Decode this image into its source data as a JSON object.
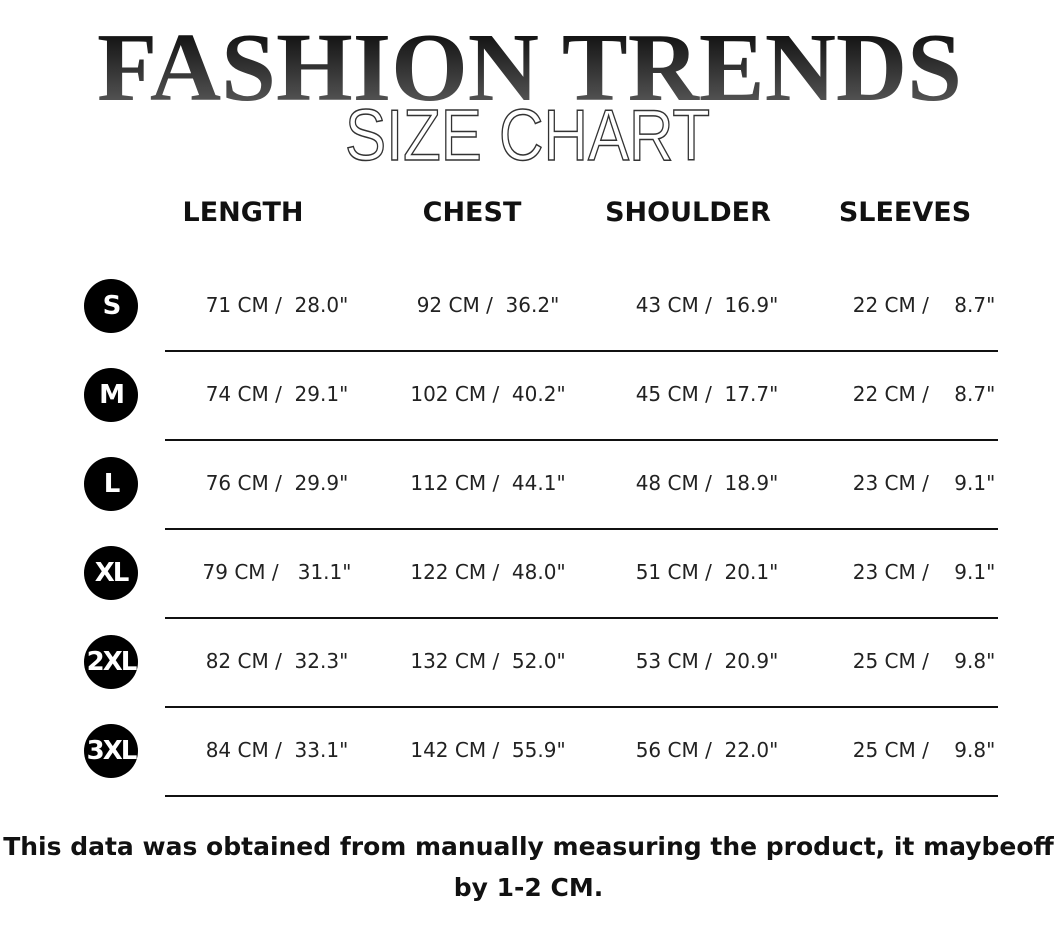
{
  "title": "FASHION TRENDS",
  "subtitle": "SIZE CHART",
  "columns": [
    "LENGTH",
    "CHEST",
    "SHOULDER",
    "SLEEVES"
  ],
  "rows": [
    {
      "size": "S",
      "values": [
        "71 CM /  28.0\"",
        "92 CM /  36.2\"",
        "43 CM /  16.9\"",
        "22 CM /    8.7\""
      ]
    },
    {
      "size": "M",
      "values": [
        "74 CM /  29.1\"",
        "102 CM /  40.2\"",
        "45 CM /  17.7\"",
        "22 CM /    8.7\""
      ]
    },
    {
      "size": "L",
      "values": [
        "76 CM /  29.9\"",
        "112 CM /  44.1\"",
        "48 CM /  18.9\"",
        "23 CM /    9.1\""
      ]
    },
    {
      "size": "XL",
      "values": [
        "79 CM /   31.1\"",
        "122 CM /  48.0\"",
        "51 CM /  20.1\"",
        "23 CM /    9.1\""
      ]
    },
    {
      "size": "2XL",
      "values": [
        "82 CM /  32.3\"",
        "132 CM /  52.0\"",
        "53 CM /  20.9\"",
        "25 CM /    9.8\""
      ]
    },
    {
      "size": "3XL",
      "values": [
        "84 CM /  33.1\"",
        "142 CM /  55.9\"",
        "56 CM /  22.0\"",
        "25 CM /    9.8\""
      ]
    }
  ],
  "note_line1": "This data was obtained from manually measuring the product, it maybeoff",
  "note_line2": "by 1-2 CM."
}
